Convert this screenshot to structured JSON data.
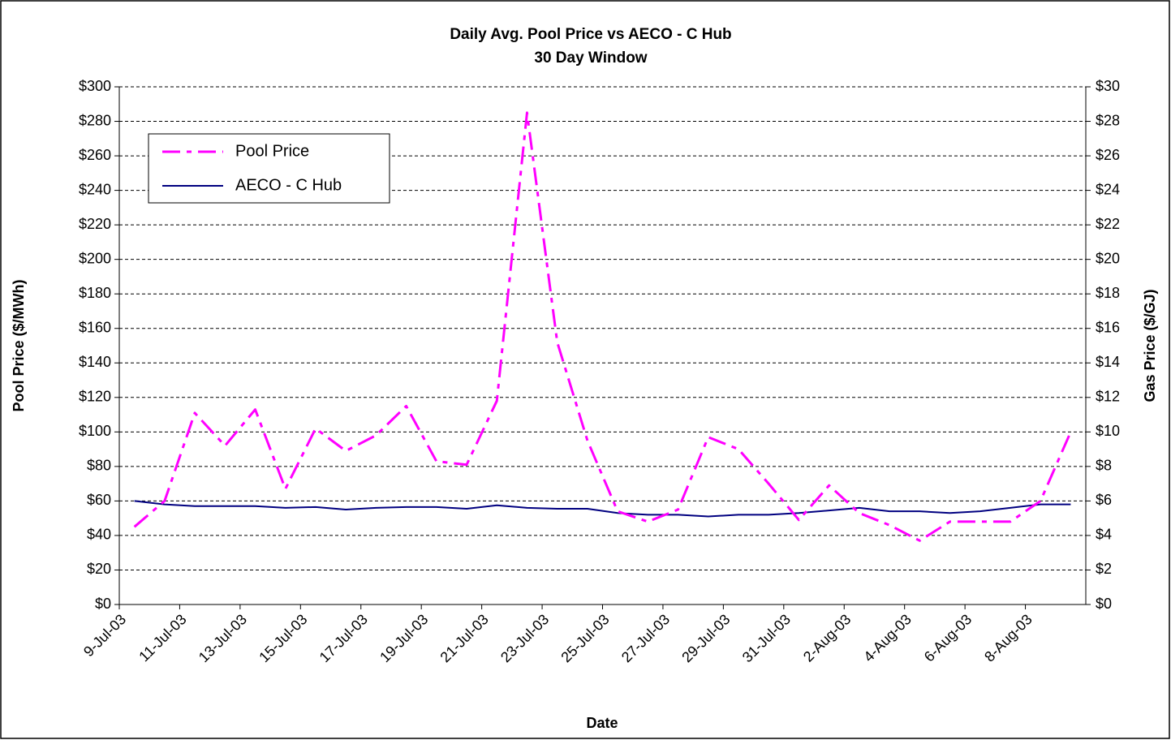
{
  "chart_data": {
    "type": "line",
    "title": "Daily Avg. Pool Price vs AECO - C Hub",
    "subtitle": "30 Day Window",
    "x_label": "Date",
    "y_label": "Pool Price ($/MWh)",
    "y2_label": "Gas Price ($/GJ)",
    "categories": [
      "9-Jul-03",
      null,
      "11-Jul-03",
      null,
      "13-Jul-03",
      null,
      "15-Jul-03",
      null,
      "17-Jul-03",
      null,
      "19-Jul-03",
      null,
      "21-Jul-03",
      null,
      "23-Jul-03",
      null,
      "25-Jul-03",
      null,
      "27-Jul-03",
      null,
      "29-Jul-03",
      null,
      "31-Jul-03",
      null,
      "2-Aug-03",
      null,
      "4-Aug-03",
      null,
      "6-Aug-03",
      null,
      "8-Aug-03",
      null
    ],
    "series": [
      {
        "name": "Pool Price",
        "color": "#ff00ff",
        "dashed": true,
        "values": [
          45,
          60,
          111,
          92,
          113,
          67,
          102,
          89,
          98,
          115,
          83,
          81,
          118,
          285,
          152,
          95,
          54,
          48,
          55,
          97,
          90,
          70,
          49,
          69,
          53,
          46,
          37,
          48,
          48,
          48,
          60,
          100
        ]
      },
      {
        "name": "AECO - C Hub",
        "color": "#000080",
        "axis": "y2",
        "values": [
          6.0,
          5.8,
          5.7,
          5.7,
          5.7,
          5.6,
          5.65,
          5.5,
          5.6,
          5.65,
          5.65,
          5.55,
          5.75,
          5.6,
          5.55,
          5.55,
          5.3,
          5.2,
          5.2,
          5.1,
          5.2,
          5.2,
          5.3,
          5.45,
          5.6,
          5.4,
          5.4,
          5.3,
          5.4,
          5.6,
          5.8,
          5.8
        ]
      }
    ],
    "ylim": [
      0,
      300
    ],
    "yticks": [
      {
        "value": 0,
        "label": "$0"
      },
      {
        "value": 20,
        "label": "$20"
      },
      {
        "value": 40,
        "label": "$40"
      },
      {
        "value": 60,
        "label": "$60"
      },
      {
        "value": 80,
        "label": "$80"
      },
      {
        "value": 100,
        "label": "$100"
      },
      {
        "value": 120,
        "label": "$120"
      },
      {
        "value": 140,
        "label": "$140"
      },
      {
        "value": 160,
        "label": "$160"
      },
      {
        "value": 180,
        "label": "$180"
      },
      {
        "value": 200,
        "label": "$200"
      },
      {
        "value": 220,
        "label": "$220"
      },
      {
        "value": 240,
        "label": "$240"
      },
      {
        "value": 260,
        "label": "$260"
      },
      {
        "value": 280,
        "label": "$280"
      },
      {
        "value": 300,
        "label": "$300"
      }
    ],
    "y2lim": [
      0,
      30
    ],
    "y2ticks": [
      {
        "value": 0,
        "label": "$0"
      },
      {
        "value": 2,
        "label": "$2"
      },
      {
        "value": 4,
        "label": "$4"
      },
      {
        "value": 6,
        "label": "$6"
      },
      {
        "value": 8,
        "label": "$8"
      },
      {
        "value": 10,
        "label": "$10"
      },
      {
        "value": 12,
        "label": "$12"
      },
      {
        "value": 14,
        "label": "$14"
      },
      {
        "value": 16,
        "label": "$16"
      },
      {
        "value": 18,
        "label": "$18"
      },
      {
        "value": 20,
        "label": "$20"
      },
      {
        "value": 22,
        "label": "$22"
      },
      {
        "value": 24,
        "label": "$24"
      },
      {
        "value": 26,
        "label": "$26"
      },
      {
        "value": 28,
        "label": "$28"
      },
      {
        "value": 30,
        "label": "$30"
      }
    ],
    "grid": true,
    "legend": "upper left"
  }
}
